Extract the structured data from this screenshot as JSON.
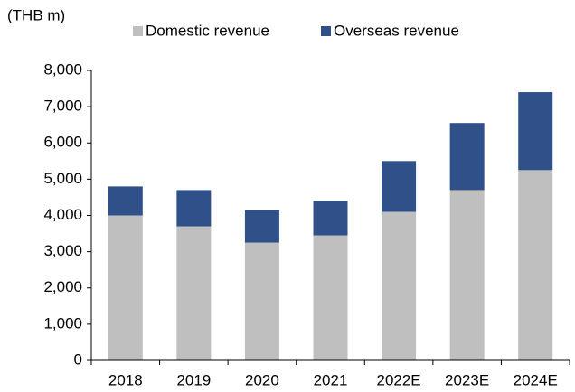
{
  "chart_data": {
    "type": "stacked_bar",
    "y_label": "(THB m)",
    "categories": [
      "2018",
      "2019",
      "2020",
      "2021",
      "2022E",
      "2023E",
      "2024E"
    ],
    "series": [
      {
        "name": "Domestic revenue",
        "color": "#bfbfbf",
        "values": [
          4000,
          3700,
          3250,
          3450,
          4100,
          4700,
          5250
        ]
      },
      {
        "name": "Overseas revenue",
        "color": "#2f5089",
        "values": [
          800,
          1000,
          900,
          950,
          1400,
          1850,
          2150
        ]
      }
    ],
    "ylim": [
      0,
      8000
    ],
    "yticks": [
      0,
      {
        "value": 1000,
        "label": "1,000"
      },
      {
        "value": 2000,
        "label": "2,000"
      },
      {
        "value": 3000,
        "label": "3,000"
      },
      {
        "value": 4000,
        "label": "4,000"
      },
      {
        "value": 5000,
        "label": "5,000"
      },
      {
        "value": 6000,
        "label": "6,000"
      },
      {
        "value": 7000,
        "label": "7,000"
      },
      {
        "value": 8000,
        "label": "8,000"
      }
    ],
    "legend": "top",
    "grid": false
  }
}
